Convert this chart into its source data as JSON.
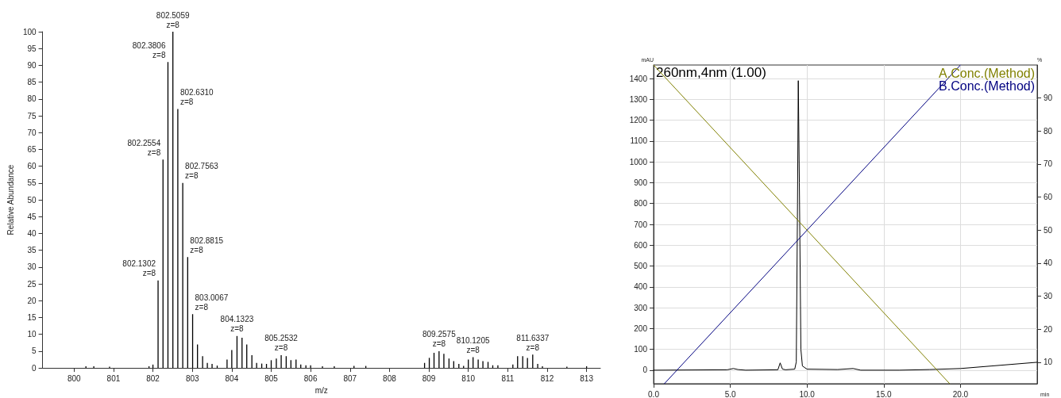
{
  "chart_data": [
    {
      "type": "bar",
      "xlabel": "m/z",
      "ylabel": "Relative Abundance",
      "color": "#000000",
      "grid": false,
      "x": [
        800.3,
        800.5,
        800.9,
        801.9,
        802.0,
        802.1302,
        802.2554,
        802.3806,
        802.5059,
        802.631,
        802.7563,
        802.8815,
        803.0067,
        803.13,
        803.26,
        803.38,
        803.5,
        803.63,
        803.88,
        804.0,
        804.1323,
        804.26,
        804.38,
        804.51,
        804.63,
        804.76,
        804.88,
        805.0,
        805.13,
        805.2532,
        805.38,
        805.5,
        805.63,
        805.75,
        805.88,
        806.0,
        806.3,
        806.6,
        807.1,
        807.4,
        808.89,
        809.01,
        809.13,
        809.2575,
        809.38,
        809.51,
        809.63,
        809.76,
        809.88,
        810.0,
        810.1205,
        810.25,
        810.37,
        810.5,
        810.62,
        810.75,
        811.13,
        811.25,
        811.38,
        811.5,
        811.6337,
        811.76,
        811.88,
        812.5,
        813.0
      ],
      "values": [
        0.5,
        0.5,
        0.4,
        0.5,
        1,
        26,
        62,
        91,
        100,
        77,
        55,
        33,
        16,
        7,
        3.5,
        1.5,
        1.2,
        0.7,
        2.5,
        5.3,
        9.5,
        9,
        7,
        3.8,
        1.5,
        1.3,
        1.2,
        2.3,
        2.8,
        3.8,
        3.5,
        2.3,
        2.5,
        1,
        0.8,
        0.8,
        0.5,
        0.5,
        0.6,
        0.6,
        1.5,
        3,
        4.5,
        5,
        4.2,
        2.8,
        2,
        1.2,
        0.6,
        2.5,
        3.2,
        2.5,
        2,
        1.8,
        0.8,
        0.8,
        1,
        3.5,
        3.5,
        3,
        4,
        1.2,
        0.5,
        0.4,
        0.5
      ],
      "xlim": [
        799.2,
        813.35
      ],
      "xticks": [
        800,
        801,
        802,
        803,
        804,
        805,
        806,
        807,
        808,
        809,
        810,
        811,
        812,
        813
      ],
      "ylim": [
        0,
        100
      ],
      "yticks": [
        0,
        5,
        10,
        15,
        20,
        25,
        30,
        35,
        40,
        45,
        50,
        55,
        60,
        65,
        70,
        75,
        80,
        85,
        90,
        95,
        100
      ],
      "annotations": [
        {
          "text": "802.1302\nz=8",
          "x": 802.1302,
          "y": 26
        },
        {
          "text": "802.2554\nz=8",
          "x": 802.2554,
          "y": 62
        },
        {
          "text": "802.3806\nz=8",
          "x": 802.3806,
          "y": 91
        },
        {
          "text": "802.5059\nz=8",
          "x": 802.5059,
          "y": 100
        },
        {
          "text": "802.6310\nz=8",
          "x": 802.631,
          "y": 77
        },
        {
          "text": "802.7563\nz=8",
          "x": 802.7563,
          "y": 55
        },
        {
          "text": "802.8815\nz=8",
          "x": 802.8815,
          "y": 33
        },
        {
          "text": "803.0067\nz=8",
          "x": 803.0067,
          "y": 16
        },
        {
          "text": "804.1323\nz=8",
          "x": 804.1323,
          "y": 9.5
        },
        {
          "text": "805.2532\nz=8",
          "x": 805.2532,
          "y": 3.8
        },
        {
          "text": "809.2575\nz=8",
          "x": 809.2575,
          "y": 5
        },
        {
          "text": "810.1205\nz=8",
          "x": 810.1205,
          "y": 3.2
        },
        {
          "text": "811.6337\nz=8",
          "x": 811.6337,
          "y": 4
        }
      ]
    },
    {
      "type": "line",
      "xlabel": "min",
      "ylabel": "mAU",
      "y2label": "%",
      "grid": true,
      "legend": "top right",
      "marker": "none",
      "xlim": [
        0,
        25
      ],
      "xticks": [
        {
          "value": 0,
          "label": "0.0"
        },
        {
          "value": 5,
          "label": "5.0"
        },
        {
          "value": 10,
          "label": "10.0"
        },
        {
          "value": 15,
          "label": "15.0"
        },
        {
          "value": 20,
          "label": "20.0"
        }
      ],
      "ylim": [
        -65,
        1465
      ],
      "yticks": [
        0,
        100,
        200,
        300,
        400,
        500,
        600,
        700,
        800,
        900,
        1000,
        1100,
        1200,
        1300,
        1400
      ],
      "y2lim": [
        3.5,
        100
      ],
      "y2ticks": [
        10,
        20,
        30,
        40,
        50,
        60,
        70,
        80,
        90
      ],
      "annotations": [
        "260nm,4nm (1.00)"
      ],
      "series": [
        {
          "color": "#000000",
          "x": [
            0,
            4.8,
            5.2,
            5.5,
            6,
            8.1,
            8.25,
            8.4,
            8.6,
            9.2,
            9.3,
            9.38,
            9.43,
            9.5,
            9.6,
            9.7,
            10,
            12,
            13,
            13.5,
            16,
            18,
            20,
            22,
            25
          ],
          "values": [
            0,
            2,
            8,
            3,
            0,
            2,
            35,
            5,
            2,
            5,
            40,
            800,
            1390,
            900,
            100,
            20,
            5,
            3,
            8,
            0,
            0,
            3,
            8,
            20,
            38
          ]
        },
        {
          "name": "A.Conc.(Method)",
          "color": "#808000",
          "axis": "y2",
          "x": [
            0,
            19.3
          ],
          "values": [
            100,
            3.5
          ]
        },
        {
          "name": "B.Conc.(Method)",
          "color": "#000080",
          "axis": "y2",
          "x": [
            0.7,
            20
          ],
          "values": [
            3.5,
            100
          ]
        }
      ]
    }
  ]
}
